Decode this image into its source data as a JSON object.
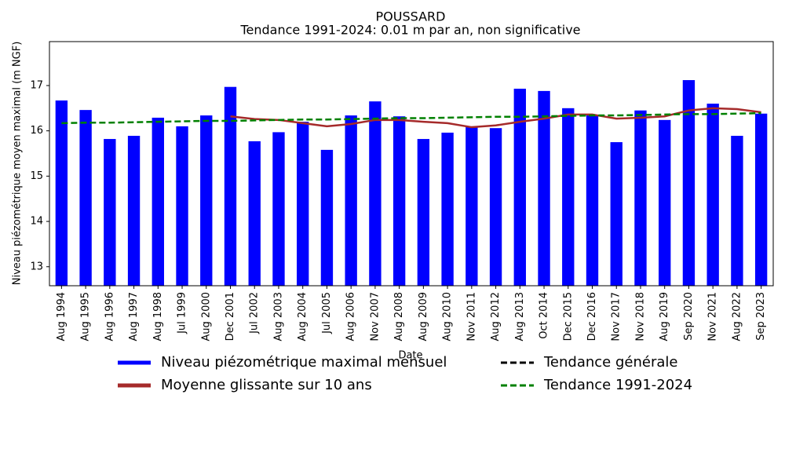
{
  "chart_data": {
    "type": "bar",
    "title": "POUSSARD",
    "subtitle": "Tendance 1991-2024: 0.01 m par an, non significative",
    "x_label": "Date",
    "y_label": "Niveau piézométrique moyen maximal (m NGF)",
    "categories": [
      "Aug 1994",
      "Aug 1995",
      "Aug 1996",
      "Aug 1997",
      "Aug 1998",
      "Jul 1999",
      "Aug 2000",
      "Dec 2001",
      "Jul 2002",
      "Aug 2003",
      "Aug 2004",
      "Jul 2005",
      "Aug 2006",
      "Nov 2007",
      "Aug 2008",
      "Aug 2009",
      "Aug 2010",
      "Nov 2011",
      "Aug 2012",
      "Aug 2013",
      "Oct 2014",
      "Dec 2015",
      "Dec 2016",
      "Nov 2017",
      "Nov 2018",
      "Aug 2019",
      "Sep 2020",
      "Nov 2021",
      "Aug 2022",
      "Sep 2023"
    ],
    "series": [
      {
        "name": "Niveau piézométrique maximal mensuel",
        "color": "#0000ff",
        "style": "bar",
        "values": [
          16.67,
          16.46,
          15.82,
          15.89,
          16.29,
          16.1,
          16.34,
          16.97,
          15.77,
          15.97,
          16.2,
          15.58,
          16.34,
          16.65,
          16.32,
          15.82,
          15.96,
          16.1,
          16.06,
          16.93,
          16.88,
          16.5,
          16.34,
          15.75,
          16.45,
          16.24,
          17.12,
          16.6,
          15.89,
          16.38
        ]
      },
      {
        "name": "Moyenne glissante sur 10 ans",
        "color": "#a52a2a",
        "style": "line",
        "dash": "solid",
        "values": [
          null,
          null,
          null,
          null,
          null,
          null,
          null,
          16.32,
          16.26,
          16.24,
          16.17,
          16.1,
          16.15,
          16.24,
          16.24,
          16.2,
          16.17,
          16.08,
          16.12,
          16.2,
          16.27,
          16.36,
          16.36,
          16.27,
          16.29,
          16.32,
          16.45,
          16.5,
          16.48,
          16.41
        ]
      },
      {
        "name": "Tendance générale",
        "color": "#000000",
        "style": "line",
        "dash": "dashed",
        "values": [
          null,
          null,
          null,
          null,
          null,
          null,
          null,
          null,
          null,
          null,
          null,
          null,
          null,
          null,
          null,
          null,
          null,
          null,
          null,
          null,
          null,
          null,
          null,
          null,
          null,
          null,
          null,
          null,
          null,
          null
        ]
      },
      {
        "name": "Tendance 1991-2024",
        "color": "#008000",
        "style": "line",
        "dash": "dashed",
        "values": [
          16.17,
          16.18,
          16.18,
          16.19,
          16.2,
          16.21,
          16.22,
          16.22,
          16.23,
          16.24,
          16.25,
          16.25,
          16.26,
          16.27,
          16.28,
          16.28,
          16.29,
          16.3,
          16.31,
          16.31,
          16.32,
          16.33,
          16.34,
          16.34,
          16.35,
          16.36,
          16.37,
          16.37,
          16.38,
          16.39
        ]
      }
    ],
    "ylim": [
      12.58,
      17.97
    ],
    "yticks": [
      13,
      14,
      15,
      16,
      17
    ],
    "grid": false,
    "legend": "below"
  }
}
